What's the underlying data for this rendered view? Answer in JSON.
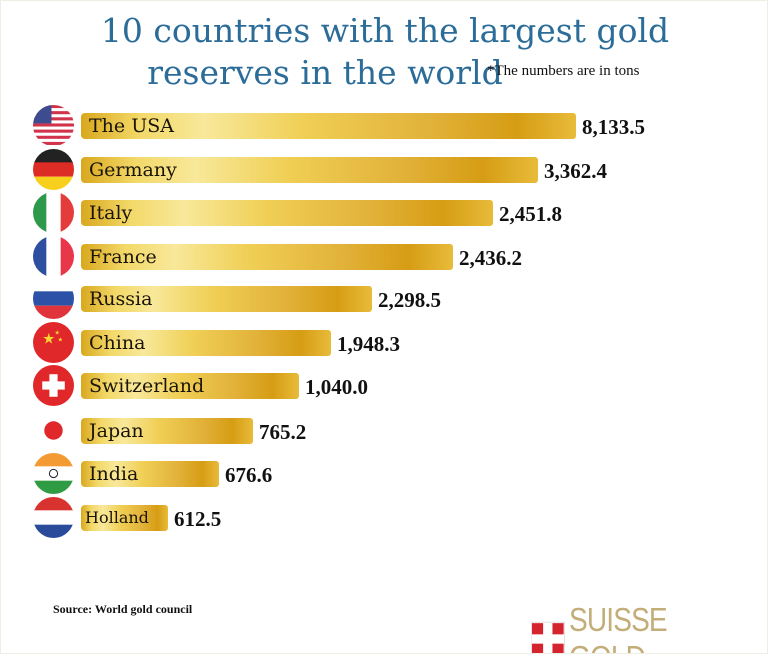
{
  "chart_data": {
    "type": "bar",
    "orientation": "horizontal",
    "title": "10 countries with the largest gold reserves in the world",
    "title_lines": [
      "10 countries with the largest gold",
      "reserves in the world"
    ],
    "note": "*The numbers are in tons",
    "categories": [
      "The USA",
      "Germany",
      "Italy",
      "France",
      "Russia",
      "China",
      "Switzerland",
      "Japan",
      "India",
      "Holland"
    ],
    "value_labels": [
      "8,133.5",
      "3,362.4",
      "2,451.8",
      "2,436.2",
      "2,298.5",
      "1,948.3",
      "1,040.0",
      "765.2",
      "676.6",
      "612.5"
    ],
    "values": [
      8133.5,
      3362.4,
      2451.8,
      2436.2,
      2298.5,
      1948.3,
      1040.0,
      765.2,
      676.6,
      612.5
    ],
    "flags": [
      "usa-flag-icon",
      "germany-flag-icon",
      "italy-flag-icon",
      "france-flag-icon",
      "russia-flag-icon",
      "china-flag-icon",
      "switzerland-flag-icon",
      "japan-flag-icon",
      "india-flag-icon",
      "netherlands-flag-icon"
    ],
    "bar_color": "#e2b23a",
    "title_color": "#2b6c98",
    "axes": "none",
    "grid": false,
    "legend": "none"
  },
  "footer": {
    "source": "Source: World gold council",
    "logo": "SUISSE GOLD",
    "logo_color": "#c3ad78",
    "logo_cross_color": "#d6242e"
  }
}
